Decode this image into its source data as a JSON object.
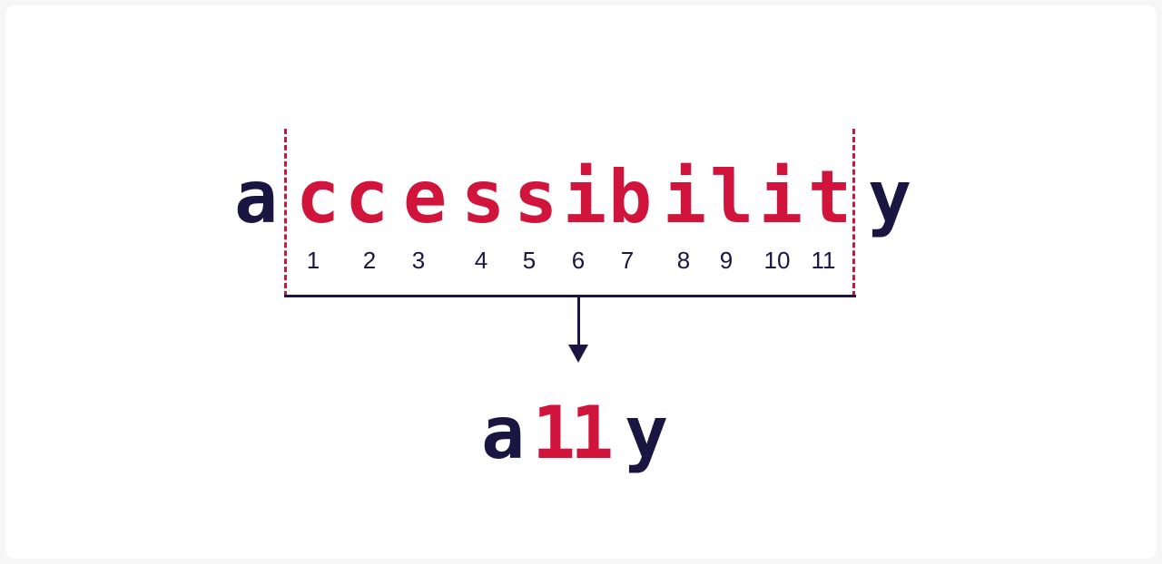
{
  "colors": {
    "dark": "#1b1542",
    "accent": "#d0143c",
    "background": "#ffffff"
  },
  "word": {
    "first": "a",
    "middle": [
      "c",
      "c",
      "e",
      "s",
      "s",
      "i",
      "b",
      "i",
      "l",
      "i",
      "t"
    ],
    "last": "y"
  },
  "counts": [
    "1",
    "2",
    "3",
    "4",
    "5",
    "6",
    "7",
    "8",
    "9",
    "10",
    "11"
  ],
  "numeronym": {
    "first": "a",
    "number": "11",
    "last": "y"
  }
}
